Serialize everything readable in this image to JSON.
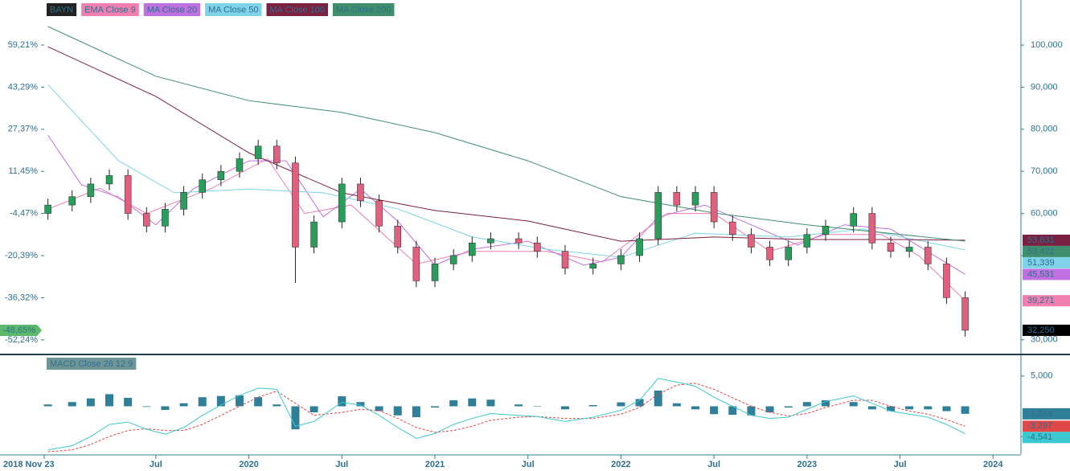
{
  "chart_data": [
    {
      "type": "candlestick",
      "symbol": "BAYN",
      "last_label": "32,250",
      "change": -48.65,
      "change_label": "-48,65%",
      "up_color": "#2a9d5c",
      "down_color": "#e0607e",
      "xlim": [
        2018.9,
        2024.15
      ],
      "ylim": [
        26700,
        110700
      ],
      "yticks": [
        {
          "value": 100000,
          "label": "100,000"
        },
        {
          "value": 90000,
          "label": "90,000"
        },
        {
          "value": 80000,
          "label": "80,000"
        },
        {
          "value": 70000,
          "label": "70,000"
        },
        {
          "value": 60000,
          "label": "60,000"
        },
        {
          "value": 50000,
          "label": "50,000"
        },
        {
          "value": 30000,
          "label": "30,000"
        }
      ],
      "y2lim": [
        -57.45,
        76.22
      ],
      "y2ticks": [
        {
          "value": 59.21,
          "label": "59,21%"
        },
        {
          "value": 43.29,
          "label": "43,29%"
        },
        {
          "value": 27.37,
          "label": "27,37%"
        },
        {
          "value": 11.45,
          "label": "11,45%"
        },
        {
          "value": -4.47,
          "label": "-4,47%"
        },
        {
          "value": -20.39,
          "label": "-20,39%"
        },
        {
          "value": -36.32,
          "label": "-36,32%"
        },
        {
          "value": -52.24,
          "label": "-52,24%"
        }
      ],
      "x": [
        2018.92,
        2019.05,
        2019.15,
        2019.25,
        2019.35,
        2019.45,
        2019.55,
        2019.65,
        2019.75,
        2019.85,
        2019.95,
        2020.05,
        2020.15,
        2020.25,
        2020.35,
        2020.5,
        2020.6,
        2020.7,
        2020.8,
        2020.9,
        2021.0,
        2021.1,
        2021.2,
        2021.3,
        2021.45,
        2021.55,
        2021.7,
        2021.85,
        2022.0,
        2022.1,
        2022.2,
        2022.3,
        2022.4,
        2022.5,
        2022.6,
        2022.7,
        2022.8,
        2022.9,
        2023.0,
        2023.1,
        2023.25,
        2023.35,
        2023.45,
        2023.55,
        2023.65,
        2023.75,
        2023.85
      ],
      "open": [
        60000,
        62000,
        64000,
        67000,
        69000,
        60000,
        57000,
        61000,
        65000,
        68000,
        70000,
        73000,
        76000,
        72000,
        52000,
        58000,
        67000,
        63000,
        57000,
        52000,
        44000,
        48000,
        50000,
        53000,
        54000,
        53000,
        51000,
        47000,
        48000,
        50000,
        54000,
        65000,
        62000,
        65000,
        58000,
        55000,
        52000,
        49000,
        52000,
        55000,
        57000,
        60000,
        53000,
        51000,
        52000,
        48000,
        40000
      ],
      "high": [
        63500,
        65500,
        68500,
        70500,
        70500,
        61500,
        62500,
        66500,
        69500,
        71500,
        74500,
        77500,
        77500,
        73500,
        59500,
        68500,
        68500,
        64500,
        58500,
        53500,
        49500,
        51500,
        54500,
        55500,
        55500,
        54500,
        52500,
        49500,
        51500,
        55500,
        66500,
        66500,
        66500,
        66500,
        59500,
        56500,
        53500,
        53500,
        56500,
        58500,
        61500,
        61500,
        54500,
        53500,
        53500,
        49500,
        41500
      ],
      "low": [
        58500,
        60500,
        62500,
        65500,
        58500,
        55500,
        55500,
        59500,
        63500,
        66500,
        68500,
        71500,
        70500,
        43500,
        50500,
        56500,
        61500,
        55500,
        50500,
        42500,
        42500,
        46500,
        48500,
        51500,
        51500,
        49500,
        45500,
        45500,
        46500,
        48500,
        52500,
        60500,
        60500,
        56500,
        53500,
        50500,
        47500,
        47500,
        50500,
        53500,
        55500,
        51500,
        49500,
        49500,
        46500,
        38500,
        30750
      ],
      "close": [
        62000,
        64000,
        67000,
        69000,
        60000,
        57000,
        61000,
        65000,
        68000,
        70000,
        73000,
        76000,
        72000,
        52000,
        58000,
        67000,
        63000,
        57000,
        52000,
        44000,
        48000,
        50000,
        53000,
        54000,
        53000,
        51000,
        47000,
        48000,
        50000,
        54000,
        65000,
        62000,
        65000,
        58000,
        55000,
        52000,
        49000,
        52000,
        55000,
        57000,
        60000,
        53000,
        51000,
        52000,
        48000,
        40000,
        32250
      ],
      "series": [
        {
          "name": "EMA Close 9",
          "color": "#f07fb0",
          "last_label": "39,271",
          "x": [
            2018.92,
            2019.2,
            2019.45,
            2019.8,
            2020.1,
            2020.3,
            2020.55,
            2020.9,
            2021.2,
            2021.6,
            2021.9,
            2022.25,
            2022.5,
            2022.8,
            2023.1,
            2023.4,
            2023.6,
            2023.85
          ],
          "values": [
            61000,
            66000,
            60000,
            66000,
            73000,
            60000,
            62000,
            48000,
            51000,
            51000,
            48500,
            60000,
            60000,
            51000,
            55000,
            55000,
            50000,
            39271
          ]
        },
        {
          "name": "MA Close 20",
          "color": "#c070e0",
          "last_label": "45,531",
          "x": [
            2018.92,
            2019.1,
            2019.3,
            2019.5,
            2019.7,
            2020.0,
            2020.2,
            2020.4,
            2020.6,
            2020.8,
            2021.0,
            2021.2,
            2021.5,
            2021.8,
            2022.0,
            2022.2,
            2022.45,
            2022.7,
            2022.95,
            2023.2,
            2023.45,
            2023.85
          ],
          "values": [
            78600,
            66800,
            63900,
            57300,
            65800,
            72500,
            72500,
            59200,
            65800,
            58200,
            47700,
            51500,
            53400,
            47700,
            49600,
            59200,
            62000,
            57300,
            52500,
            57300,
            56300,
            45531
          ]
        },
        {
          "name": "MA Close 50",
          "color": "#7fd3e8",
          "last_label": "51,339",
          "x": [
            2018.92,
            2019.3,
            2019.6,
            2020.0,
            2020.4,
            2020.8,
            2021.2,
            2021.6,
            2022.0,
            2022.4,
            2022.9,
            2023.3,
            2023.85
          ],
          "values": [
            90600,
            72500,
            64900,
            65800,
            64900,
            61100,
            54400,
            51500,
            49600,
            55300,
            54400,
            56300,
            51339
          ]
        },
        {
          "name": "MA Close 100",
          "color": "#7a2040",
          "last_label": "53,631",
          "x": [
            2018.92,
            2019.5,
            2020.0,
            2020.5,
            2021.0,
            2021.5,
            2022.0,
            2022.5,
            2023.0,
            2023.5,
            2023.85
          ],
          "values": [
            99600,
            87800,
            74400,
            64900,
            60700,
            58200,
            53400,
            54400,
            53800,
            53800,
            53631
          ]
        },
        {
          "name": "MA Close 200",
          "color": "#3f8f6e",
          "last_label": "53,422",
          "x": [
            2018.92,
            2019.5,
            2020.0,
            2020.5,
            2021.0,
            2021.5,
            2022.0,
            2022.5,
            2023.0,
            2023.85
          ],
          "values": [
            104400,
            92600,
            86800,
            84000,
            79200,
            72500,
            64000,
            60100,
            57300,
            53422
          ]
        }
      ]
    },
    {
      "type": "macd",
      "title": "MACD Close 26 12 9",
      "xlim": [
        2018.9,
        2024.15
      ],
      "ylim": [
        -7895,
        8290
      ],
      "yticks": [
        {
          "value": 5000,
          "label": "5,000"
        },
        {
          "value": -5000,
          "label": "-5,000"
        }
      ],
      "xticks": [
        {
          "value": 2018.9,
          "label": "2018 Nov 23"
        },
        {
          "value": 2019.5,
          "label": "Jul"
        },
        {
          "value": 2020,
          "label": "2020"
        },
        {
          "value": 2020.5,
          "label": "Jul"
        },
        {
          "value": 2021,
          "label": "2021"
        },
        {
          "value": 2021.5,
          "label": "Jul"
        },
        {
          "value": 2022,
          "label": "2022"
        },
        {
          "value": 2022.5,
          "label": "Jul"
        },
        {
          "value": 2023,
          "label": "2023"
        },
        {
          "value": 2023.5,
          "label": "Jul"
        },
        {
          "value": 2024,
          "label": "2024"
        }
      ],
      "x": [
        2018.92,
        2019.05,
        2019.15,
        2019.25,
        2019.35,
        2019.45,
        2019.55,
        2019.65,
        2019.75,
        2019.85,
        2019.95,
        2020.05,
        2020.15,
        2020.25,
        2020.35,
        2020.5,
        2020.6,
        2020.7,
        2020.8,
        2020.9,
        2021.0,
        2021.1,
        2021.2,
        2021.3,
        2021.45,
        2021.55,
        2021.7,
        2021.85,
        2022.0,
        2022.1,
        2022.2,
        2022.3,
        2022.4,
        2022.5,
        2022.6,
        2022.7,
        2022.8,
        2022.9,
        2023.0,
        2023.1,
        2023.25,
        2023.35,
        2023.45,
        2023.55,
        2023.65,
        2023.75,
        2023.85
      ],
      "series": [
        {
          "name": "histogram",
          "color": "#2f7f99",
          "last_label": "-1,244",
          "values": [
            300,
            700,
            1300,
            2000,
            1400,
            -100,
            -600,
            500,
            1500,
            1700,
            1800,
            1500,
            300,
            -3800,
            -1000,
            1650,
            700,
            -800,
            -1500,
            -1800,
            -200,
            1000,
            1300,
            1100,
            300,
            0,
            -500,
            200,
            650,
            1200,
            2600,
            500,
            -500,
            -1300,
            -1400,
            -1500,
            -1000,
            -200,
            700,
            1000,
            700,
            -500,
            -800,
            -500,
            -500,
            -800,
            -1244
          ]
        },
        {
          "name": "signal",
          "color": "#e04848",
          "last_label": "-3,297",
          "values": [
            -7500,
            -7200,
            -6300,
            -5000,
            -4000,
            -3700,
            -4000,
            -4000,
            -3000,
            -1500,
            0,
            1500,
            2500,
            500,
            -1500,
            -1000,
            -500,
            -700,
            -2000,
            -3500,
            -4300,
            -4000,
            -3300,
            -2300,
            -1800,
            -1700,
            -2000,
            -2000,
            -1300,
            -200,
            2000,
            3500,
            3800,
            2800,
            1400,
            0,
            -1000,
            -1600,
            -1200,
            -200,
            1000,
            1000,
            0,
            -800,
            -1300,
            -2200,
            -3297
          ]
        },
        {
          "name": "macd",
          "color": "#3cc8d0",
          "last_label": "-4,541",
          "values": [
            -7200,
            -6500,
            -5000,
            -3000,
            -2600,
            -3800,
            -4600,
            -3500,
            -1500,
            200,
            1800,
            3000,
            2800,
            -3300,
            -2500,
            650,
            200,
            -1500,
            -3500,
            -5300,
            -4500,
            -3000,
            -2000,
            -1200,
            -1500,
            -1700,
            -2500,
            -1800,
            -650,
            1000,
            4600,
            4000,
            3300,
            1500,
            0,
            -1500,
            -2000,
            -1800,
            -500,
            800,
            1700,
            500,
            -800,
            -1300,
            -1800,
            -3000,
            -4541
          ]
        }
      ]
    }
  ]
}
